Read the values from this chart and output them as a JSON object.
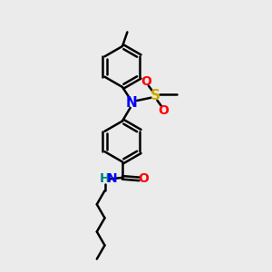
{
  "bg_color": "#ebebeb",
  "bond_color": "#000000",
  "N_color": "#0000ff",
  "O_color": "#ff0000",
  "S_color": "#ccaa00",
  "NH_color": "#008080",
  "line_width": 1.8,
  "dbo": 0.07,
  "figsize": [
    3.0,
    3.0
  ],
  "dpi": 100,
  "xlim": [
    0,
    10
  ],
  "ylim": [
    0,
    10
  ]
}
